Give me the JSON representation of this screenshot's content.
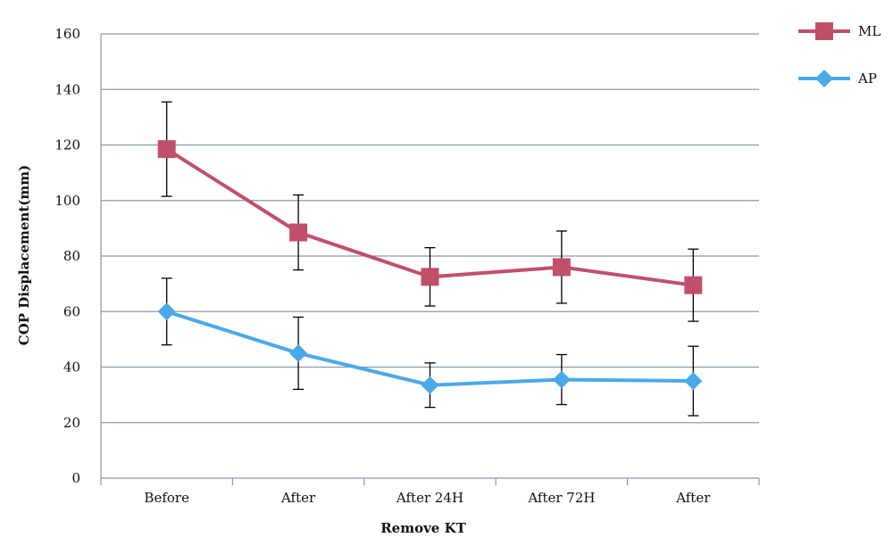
{
  "chart_data": {
    "type": "line",
    "title": "",
    "xlabel": "Remove KT",
    "ylabel": "COP Displacement(mm)",
    "ylim": [
      0,
      160
    ],
    "yticks": [
      0,
      20,
      40,
      60,
      80,
      100,
      120,
      140,
      160
    ],
    "categories": [
      "Before",
      "After",
      "After 24H",
      "After 72H",
      "After"
    ],
    "grid": "horizontal",
    "legend_position": "top-right",
    "series": [
      {
        "name": "ML",
        "color": "#c0506a",
        "marker": "square",
        "values": [
          118.5,
          88.5,
          72.5,
          76,
          69.5
        ],
        "error": [
          17,
          13.5,
          10.5,
          13,
          13
        ]
      },
      {
        "name": "AP",
        "color": "#4aa9e8",
        "marker": "diamond",
        "values": [
          60,
          45,
          33.5,
          35.5,
          35
        ],
        "error": [
          12,
          13,
          8,
          9,
          12.5
        ]
      }
    ]
  }
}
